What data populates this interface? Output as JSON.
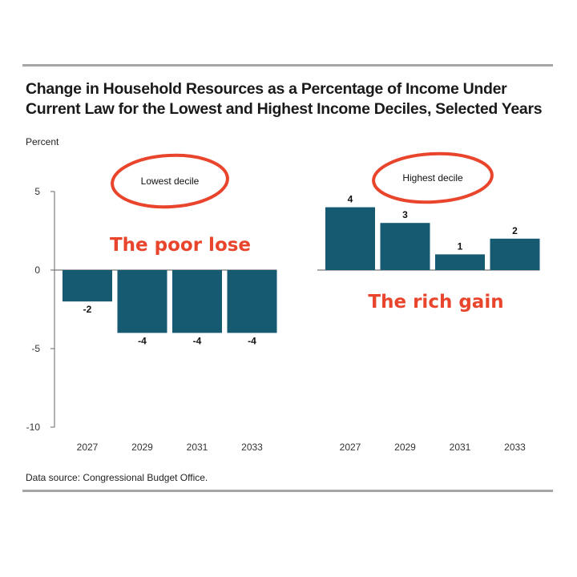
{
  "title": "Change in Household Resources as a Percentage of Income Under Current Law for the Lowest and Highest Income Deciles, Selected Years",
  "y_unit_label": "Percent",
  "source": "Data source: Congressional Budget Office.",
  "annotations": {
    "left": "The poor lose",
    "right": "The rich gain"
  },
  "colors": {
    "bar": "#155a70",
    "annotation": "#e8452c",
    "axis": "#666666",
    "rule": "#a6a6a6"
  },
  "chart_data": [
    {
      "type": "bar",
      "title": "Lowest decile",
      "categories": [
        "2027",
        "2029",
        "2031",
        "2033"
      ],
      "values": [
        -2,
        -4,
        -4,
        -4
      ],
      "ylim": [
        -10,
        5
      ],
      "yticks": [
        "5",
        "0",
        "-5",
        "-10"
      ],
      "data_labels": [
        "-2",
        "-4",
        "-4",
        "-4"
      ],
      "grid": false
    },
    {
      "type": "bar",
      "title": "Highest decile",
      "categories": [
        "2027",
        "2029",
        "2031",
        "2033"
      ],
      "values": [
        4,
        3,
        1,
        2
      ],
      "ylim": [
        -10,
        5
      ],
      "data_labels": [
        "4",
        "3",
        "1",
        "2"
      ],
      "grid": false
    }
  ]
}
